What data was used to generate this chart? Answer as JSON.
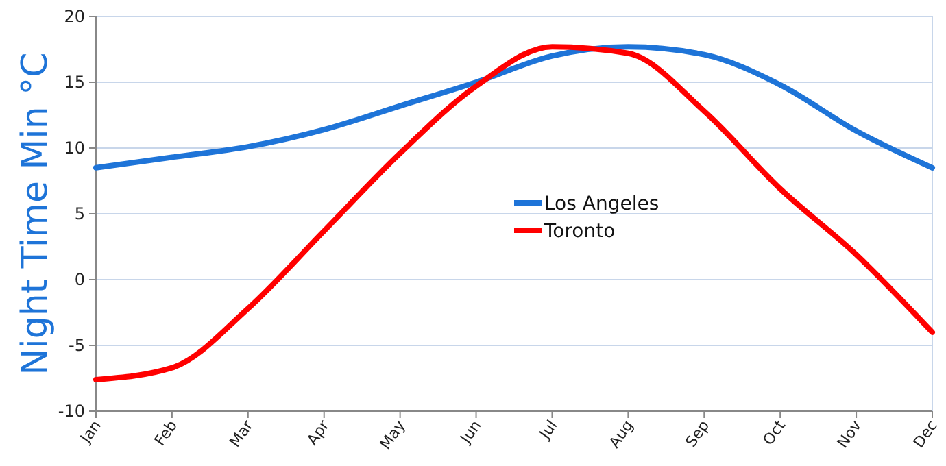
{
  "chart_data": {
    "type": "line",
    "ylabel": "Night Time Min °C",
    "categories": [
      "Jan",
      "Feb",
      "Mar",
      "Apr",
      "May",
      "Jun",
      "Jul",
      "Aug",
      "Sep",
      "Oct",
      "Nov",
      "Dec"
    ],
    "series": [
      {
        "name": "Los Angeles",
        "color": "#1e74d8",
        "values": [
          8.5,
          9.3,
          10.1,
          11.4,
          13.2,
          15,
          17,
          17.7,
          17.1,
          14.8,
          11.3,
          8.5
        ]
      },
      {
        "name": "Toronto",
        "color": "#ff0000",
        "values": [
          -7.6,
          -6.7,
          -2.2,
          3.7,
          9.6,
          14.7,
          17.7,
          17.2,
          12.8,
          6.9,
          1.9,
          -4
        ]
      }
    ],
    "ylim": [
      -10,
      20
    ],
    "yticks": [
      -10,
      -5,
      0,
      5,
      10,
      15,
      20
    ],
    "grid": "y",
    "legend": "center",
    "line_style": "solid",
    "marker": "none"
  }
}
